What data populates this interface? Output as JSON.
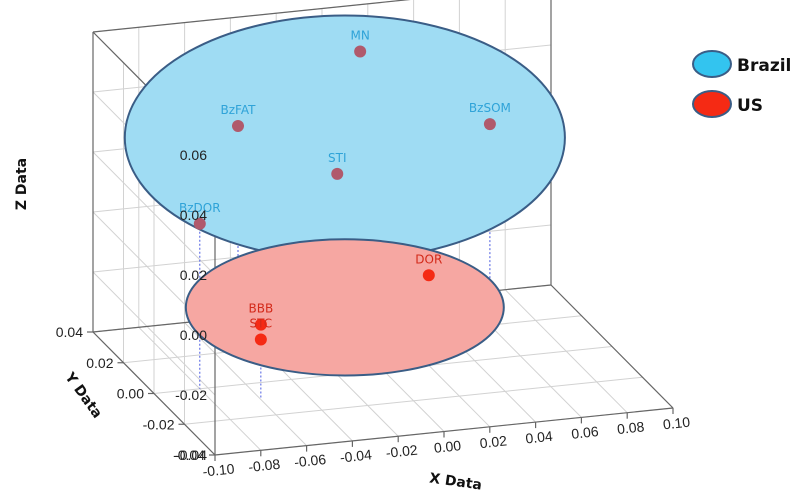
{
  "chart_data": {
    "type": "scatter",
    "title": "",
    "xlabel": "X Data",
    "ylabel": "Y Data",
    "zlabel": "Z Data",
    "xlim": [
      -0.1,
      0.1
    ],
    "ylim": [
      -0.04,
      0.04
    ],
    "zlim": [
      -0.04,
      0.06
    ],
    "x_ticks": [
      "-0.10",
      "-0.08",
      "-0.06",
      "-0.04",
      "-0.02",
      "0.00",
      "0.02",
      "0.04",
      "0.06",
      "0.08",
      "0.10"
    ],
    "y_ticks": [
      "-0.04",
      "-0.02",
      "0.00",
      "0.02",
      "0.04"
    ],
    "z_ticks": [
      "-0.04",
      "-0.02",
      "0.00",
      "0.02",
      "0.04",
      "0.06"
    ],
    "grid": true,
    "legend_position": "top-right",
    "series": [
      {
        "name": "Brazil",
        "color": "#33c4ef",
        "ellipse_fill": "#9fdcf3",
        "marker_color": "#b05a6c",
        "label_color": "#2fa3d8",
        "points": [
          {
            "label": "MN",
            "x": 0.01,
            "y": 0.03,
            "z": 0.05
          },
          {
            "label": "BzFAT",
            "x": -0.05,
            "y": 0.02,
            "z": 0.035
          },
          {
            "label": "BzSOM",
            "x": 0.06,
            "y": 0.02,
            "z": 0.027
          },
          {
            "label": "BzDOR",
            "x": -0.08,
            "y": 0.0,
            "z": 0.015
          },
          {
            "label": "STI",
            "x": 0.0,
            "y": 0.03,
            "z": 0.01
          }
        ]
      },
      {
        "name": "US",
        "color": "#f52a14",
        "ellipse_fill": "#f6a7a2",
        "marker_color": "#f52a14",
        "label_color": "#d32a1a",
        "points": [
          {
            "label": "DOR",
            "x": 0.02,
            "y": 0.0,
            "z": -0.01
          },
          {
            "label": "STC",
            "x": -0.06,
            "y": -0.01,
            "z": -0.02
          },
          {
            "label": "BBB",
            "x": -0.04,
            "y": 0.02,
            "z": -0.032
          }
        ]
      }
    ]
  }
}
